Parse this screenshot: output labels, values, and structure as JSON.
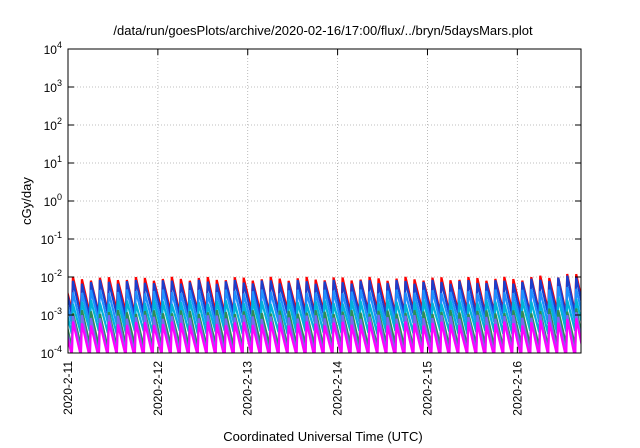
{
  "chart_data": {
    "type": "line",
    "title": "/data/run/goesPlots/archive/2020-02-16/17:00/flux/../bryn/5daysMars.plot",
    "xlabel": "Coordinated Universal Time (UTC)",
    "ylabel": "cGy/day",
    "y_scale": "log",
    "ylim": [
      0.0001,
      10000
    ],
    "y_ticks": [
      {
        "value": 0.0001,
        "base": "10",
        "exp": "-4"
      },
      {
        "value": 0.001,
        "base": "10",
        "exp": "-3"
      },
      {
        "value": 0.01,
        "base": "10",
        "exp": "-2"
      },
      {
        "value": 0.1,
        "base": "10",
        "exp": "-1"
      },
      {
        "value": 1,
        "base": "10",
        "exp": "0"
      },
      {
        "value": 10,
        "base": "10",
        "exp": "1"
      },
      {
        "value": 100,
        "base": "10",
        "exp": "2"
      },
      {
        "value": 1000,
        "base": "10",
        "exp": "3"
      },
      {
        "value": 10000,
        "base": "10",
        "exp": "4"
      }
    ],
    "xlim": [
      "2020-02-11T00:00",
      "2020-02-16T17:00"
    ],
    "x_ticks": [
      "2020-2-11",
      "2020-2-12",
      "2020-2-13",
      "2020-2-14",
      "2020-2-15",
      "2020-2-16"
    ],
    "grid": true,
    "legend": "none",
    "pattern": "sawtooth: each cycle of about 2.4 hours rises sharply to a peak and then decays back to the low value",
    "cycle_hours": 2.4,
    "series": [
      {
        "color": "#ff0000",
        "low": 0.0012,
        "high": 0.009,
        "high_end": 0.012
      },
      {
        "color": "#1a3fcc",
        "low": 0.001,
        "high": 0.0075,
        "high_end": 0.011
      },
      {
        "color": "#1e90ff",
        "low": 0.0006,
        "high": 0.0042,
        "high_end": 0.006
      },
      {
        "color": "#00b4d8",
        "low": 0.00035,
        "high": 0.0022,
        "high_end": 0.003
      },
      {
        "color": "#2e8b57",
        "low": 0.00015,
        "high": 0.0012,
        "high_end": 0.0015
      },
      {
        "color": "#7b68ee",
        "low": 0.0001,
        "high": 0.0009,
        "high_end": 0.0011
      },
      {
        "color": "#ff00ff",
        "low": 8e-05,
        "high": 0.0006,
        "high_end": 0.0008
      }
    ]
  }
}
